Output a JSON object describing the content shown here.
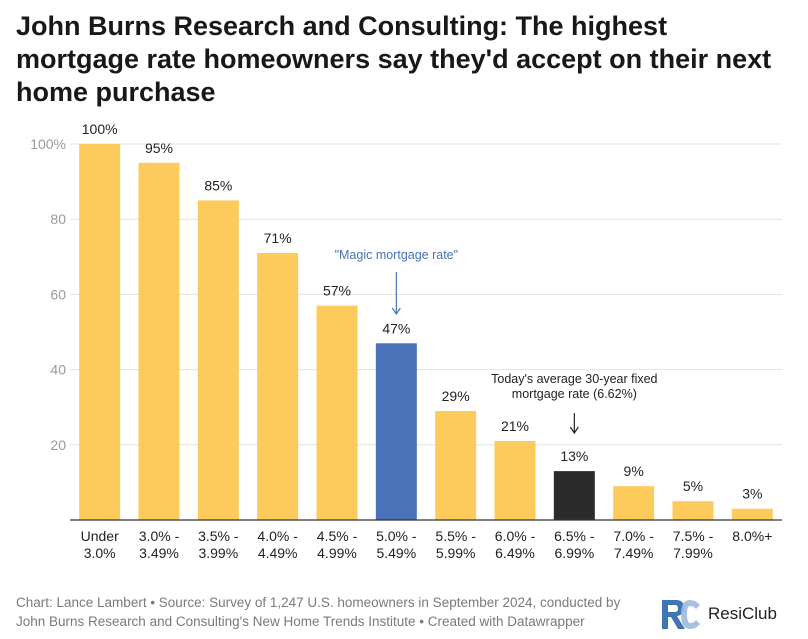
{
  "title": "John Burns Research and Consulting: The highest mortgage rate homeowners say they'd accept on their next home purchase",
  "chart_data": {
    "type": "bar",
    "categories": [
      [
        "Under",
        "3.0%"
      ],
      [
        "3.0% -",
        "3.49%"
      ],
      [
        "3.5% -",
        "3.99%"
      ],
      [
        "4.0% -",
        "4.49%"
      ],
      [
        "4.5% -",
        "4.99%"
      ],
      [
        "5.0% -",
        "5.49%"
      ],
      [
        "5.5% -",
        "5.99%"
      ],
      [
        "6.0% -",
        "6.49%"
      ],
      [
        "6.5% -",
        "6.99%"
      ],
      [
        "7.0% -",
        "7.49%"
      ],
      [
        "7.5% -",
        "7.99%"
      ],
      [
        "8.0%+"
      ]
    ],
    "values": [
      100,
      95,
      85,
      71,
      57,
      47,
      29,
      21,
      13,
      9,
      5,
      3
    ],
    "value_labels": [
      "100%",
      "95%",
      "85%",
      "71%",
      "57%",
      "47%",
      "29%",
      "21%",
      "13%",
      "9%",
      "5%",
      "3%"
    ],
    "bar_colors": [
      "#fccb5b",
      "#fccb5b",
      "#fccb5b",
      "#fccb5b",
      "#fccb5b",
      "#4a72b8",
      "#fccb5b",
      "#fccb5b",
      "#2b2b2b",
      "#fccb5b",
      "#fccb5b",
      "#fccb5b"
    ],
    "ylim": [
      0,
      100
    ],
    "yticks": [
      {
        "value": 100,
        "label": "100%"
      },
      {
        "value": 80,
        "label": "80"
      },
      {
        "value": 60,
        "label": "60"
      },
      {
        "value": 40,
        "label": "40"
      },
      {
        "value": 20,
        "label": "20"
      }
    ],
    "grid": true,
    "annotations": [
      {
        "text": [
          "\"Magic mortgage rate\""
        ],
        "category_index": 5,
        "color": "#4a72b8"
      },
      {
        "text": [
          "Today's average 30-year fixed",
          "mortgage rate (6.62%)"
        ],
        "category_index": 8,
        "color": "#222222"
      }
    ]
  },
  "footer": {
    "line1": "Chart: Lance Lambert • Source: Survey of 1,247 U.S. homeowners in September 2024, conducted by",
    "line2": "John Burns Research and Consulting's New Home Trends Institute • Created with Datawrapper"
  },
  "logo": {
    "mark": "RC",
    "name": "ResiClub",
    "colors": {
      "primary": "#3f74b5",
      "secondary": "#9fb9db"
    }
  }
}
